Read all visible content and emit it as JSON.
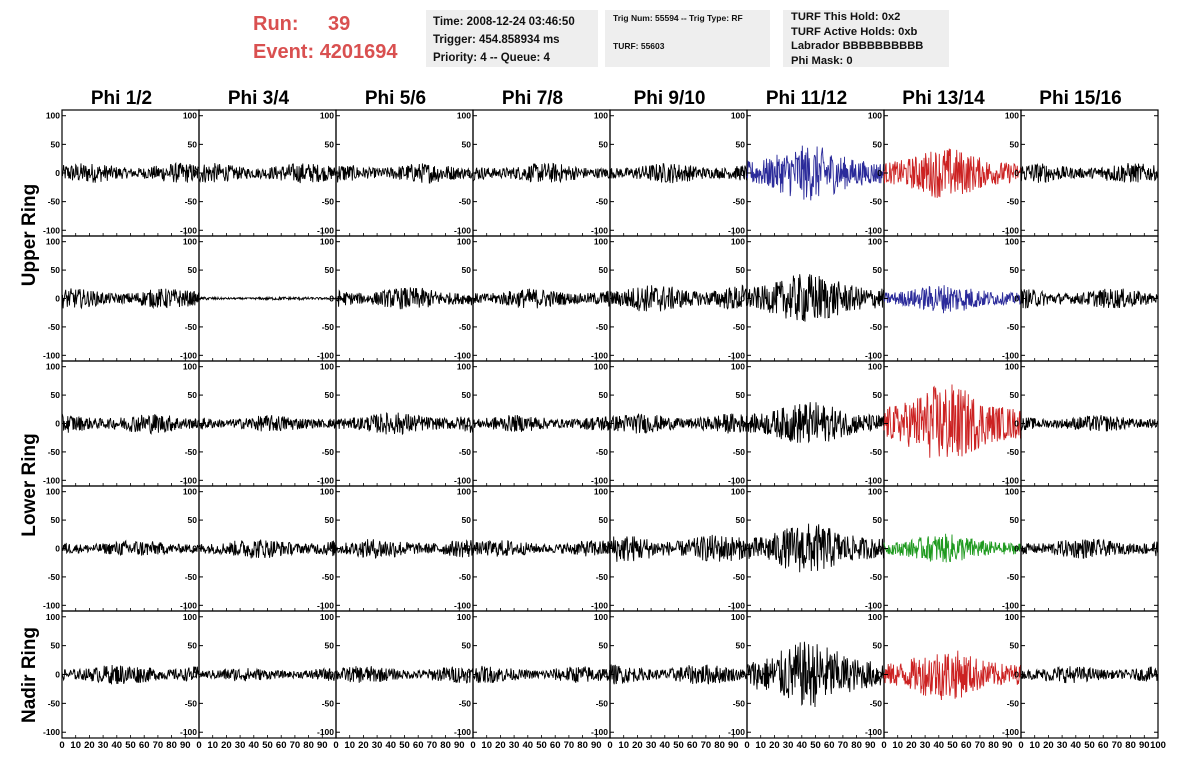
{
  "header": {
    "run_label": "Run:",
    "run_value": "39",
    "event_label": "Event:",
    "event_value": "4201694",
    "accent_color": "#d95050"
  },
  "time_box": {
    "time": "Time: 2008-12-24 03:46:50",
    "trigger": "Trigger: 454.858934 ms",
    "priority": "Priority: 4 -- Queue: 4"
  },
  "trig_box": {
    "trig": "Trig Num: 55594 -- Trig Type: RF",
    "turf": "TURF: 55603"
  },
  "turf_box": {
    "this_hold": "TURF This Hold: 0x2",
    "active_holds": "TURF Active Holds: 0xb",
    "labrador": "Labrador BBBBBBBBBB",
    "phi_mask": "Phi Mask: 0"
  },
  "columns": [
    "Phi 1/2",
    "Phi 3/4",
    "Phi 5/6",
    "Phi 7/8",
    "Phi 9/10",
    "Phi 11/12",
    "Phi 13/14",
    "Phi 15/16"
  ],
  "ring_labels": {
    "upper": "Upper Ring",
    "lower": "Lower Ring",
    "nadir": "Nadir Ring"
  },
  "y_ticks": [
    "100",
    "50",
    "0",
    "-50",
    "-100"
  ],
  "x_ticks": [
    "0",
    "10",
    "20",
    "30",
    "40",
    "50",
    "60",
    "70",
    "80",
    "90",
    "100"
  ],
  "trace_colors": {
    "default": "#000000",
    "blue": "#2b2b9a",
    "red": "#cc2222",
    "green": "#1f9a1f"
  },
  "chart_data": {
    "type": "line",
    "title": "",
    "xlabel": "",
    "ylabel": "",
    "xlim": [
      0,
      100
    ],
    "ylim": [
      -110,
      110
    ],
    "rows": 5,
    "cols": 8,
    "amplitudes": [
      [
        18,
        18,
        18,
        18,
        18,
        38,
        35,
        18
      ],
      [
        18,
        3,
        20,
        18,
        25,
        35,
        20,
        18
      ],
      [
        18,
        15,
        20,
        15,
        18,
        30,
        55,
        15
      ],
      [
        15,
        18,
        18,
        15,
        25,
        35,
        20,
        18
      ],
      [
        18,
        12,
        15,
        15,
        18,
        45,
        35,
        15
      ]
    ],
    "colors": [
      [
        "default",
        "default",
        "default",
        "default",
        "default",
        "blue",
        "red",
        "default"
      ],
      [
        "default",
        "default",
        "default",
        "default",
        "default",
        "default",
        "blue",
        "default"
      ],
      [
        "default",
        "default",
        "default",
        "default",
        "default",
        "default",
        "red",
        "default"
      ],
      [
        "default",
        "default",
        "default",
        "default",
        "default",
        "default",
        "green",
        "default"
      ],
      [
        "default",
        "default",
        "default",
        "default",
        "default",
        "default",
        "red",
        "default"
      ]
    ]
  }
}
